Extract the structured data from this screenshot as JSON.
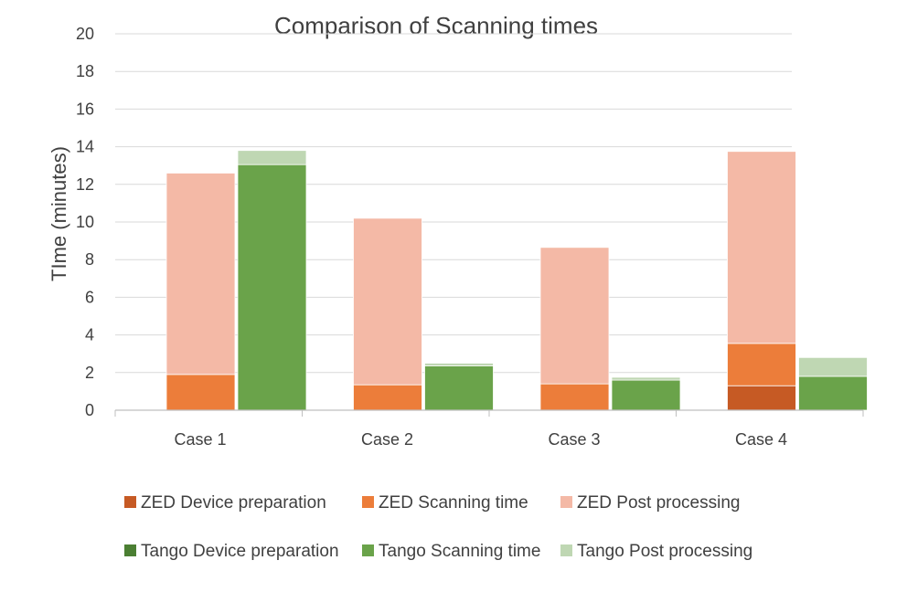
{
  "chart_data": {
    "type": "bar",
    "stacked": true,
    "grouped": true,
    "title": "Comparison of Scanning times",
    "xlabel": "",
    "ylabel": "TIme (minutes)",
    "ylim": [
      0,
      20
    ],
    "yticks": [
      0,
      2,
      4,
      6,
      8,
      10,
      12,
      14,
      16,
      18,
      20
    ],
    "grid": true,
    "legend_position": "bottom",
    "categories": [
      "Case 1",
      "Case 2",
      "Case 3",
      "Case 4"
    ],
    "groups": [
      {
        "name": "ZED",
        "series": [
          {
            "name": "ZED Device preparation",
            "color": "#c65a24",
            "values": [
              0,
              0,
              0,
              1.3
            ]
          },
          {
            "name": "ZED Scanning time",
            "color": "#ec7d3a",
            "values": [
              1.9,
              1.35,
              1.4,
              2.25
            ]
          },
          {
            "name": "ZED Post processing",
            "color": "#f4b9a6",
            "values": [
              10.7,
              8.85,
              7.25,
              10.2
            ]
          }
        ]
      },
      {
        "name": "Tango",
        "series": [
          {
            "name": "Tango Device preparation",
            "color": "#4b7f33",
            "values": [
              0,
              0,
              0,
              0
            ]
          },
          {
            "name": "Tango Scanning time",
            "color": "#6aa34a",
            "values": [
              13.05,
              2.35,
              1.6,
              1.8
            ]
          },
          {
            "name": "Tango Post processing",
            "color": "#bfd7b3",
            "values": [
              0.75,
              0.15,
              0.15,
              1.0
            ]
          }
        ]
      }
    ]
  }
}
